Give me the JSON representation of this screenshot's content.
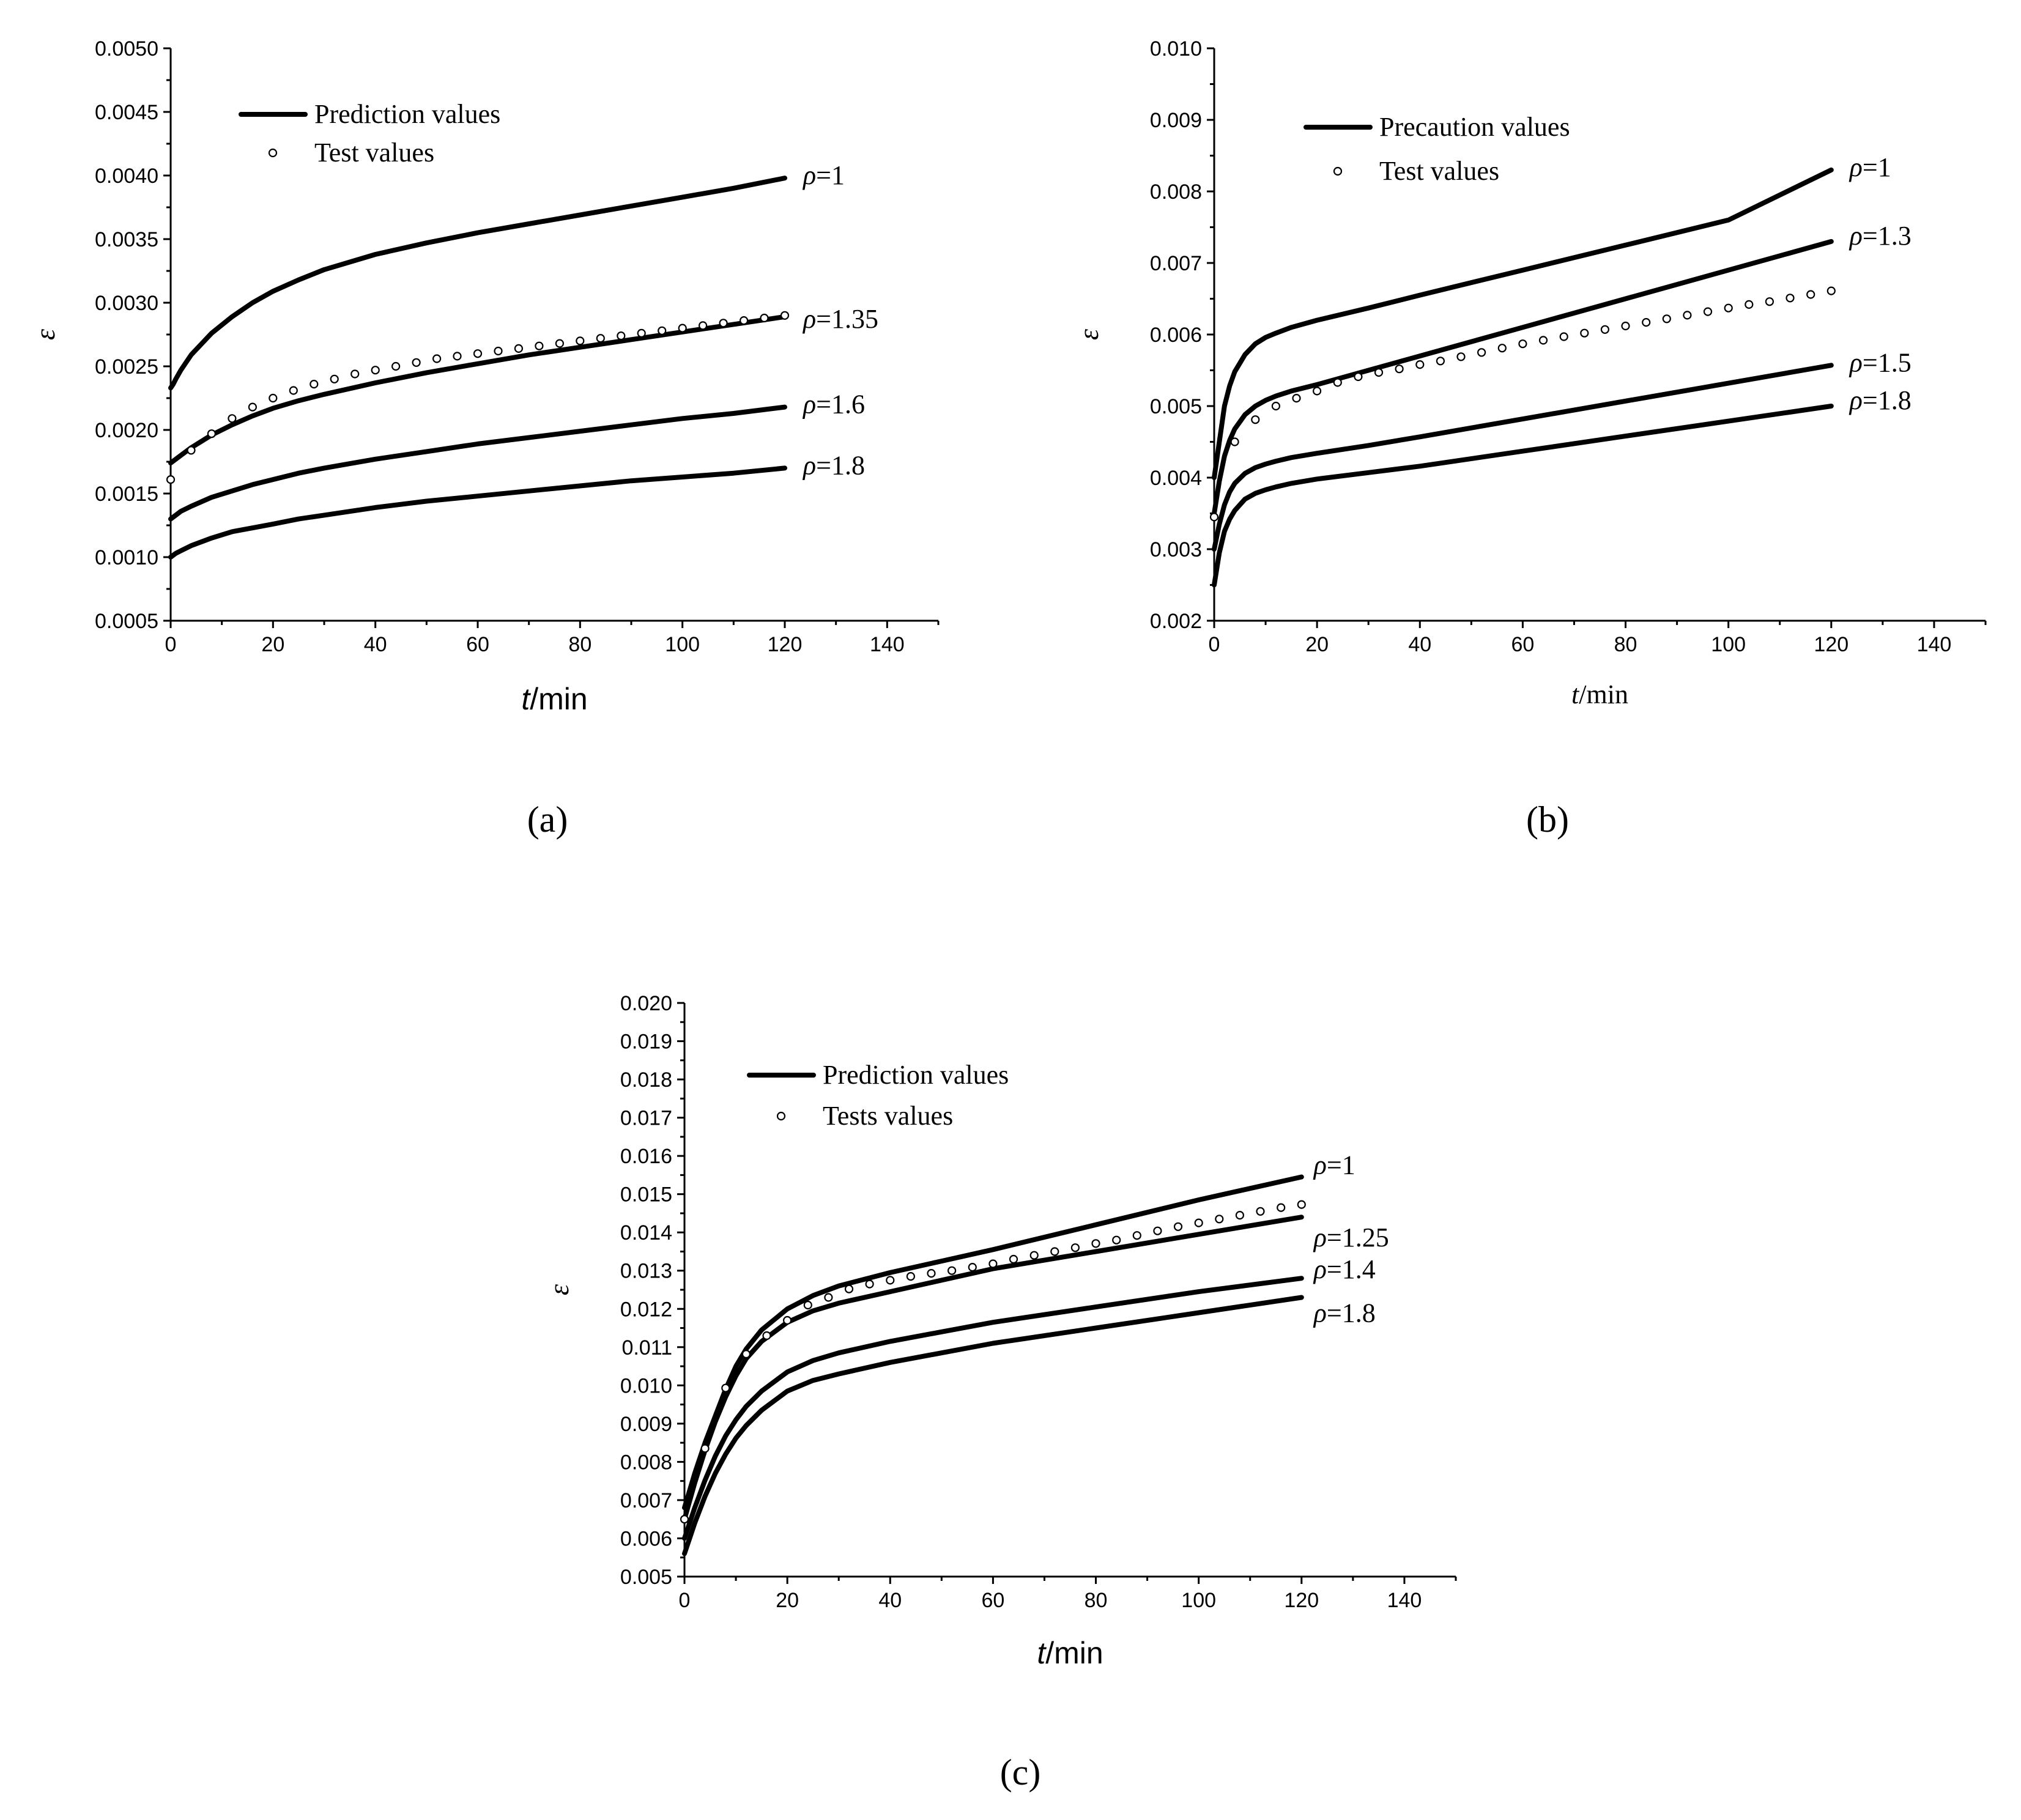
{
  "figure": {
    "panel_labels": [
      "(a)",
      "(b)",
      "(c)"
    ]
  },
  "chart_data": [
    {
      "type": "line",
      "panel": "(a)",
      "title": "",
      "xlabel_var": "t",
      "xlabel_unit": "/min",
      "ylabel": "ε",
      "xlim": [
        0,
        150
      ],
      "ylim": [
        0.0005,
        0.005
      ],
      "x_ticks": [
        0,
        20,
        40,
        60,
        80,
        100,
        120,
        140
      ],
      "y_ticks": [
        0.0005,
        0.001,
        0.0015,
        0.002,
        0.0025,
        0.003,
        0.0035,
        0.004,
        0.0045,
        0.005
      ],
      "y_decimals": 4,
      "legend": {
        "line_label": "Prediction values",
        "marker_label": "Test values",
        "position": "top-left"
      },
      "series": [
        {
          "name": "ρ=1",
          "label_rho": "ρ",
          "label_value": "=1",
          "x": [
            0,
            0.5,
            1,
            2,
            4,
            8,
            12,
            16,
            20,
            25,
            30,
            40,
            50,
            60,
            70,
            80,
            90,
            100,
            110,
            120
          ],
          "values": [
            0.00233,
            0.00236,
            0.0024,
            0.00247,
            0.00259,
            0.00276,
            0.00289,
            0.003,
            0.00309,
            0.00318,
            0.00326,
            0.00338,
            0.00347,
            0.00355,
            0.00362,
            0.00369,
            0.00376,
            0.00383,
            0.0039,
            0.00398
          ]
        },
        {
          "name": "ρ=1.35",
          "label_rho": "ρ",
          "label_value": "=1.35",
          "x": [
            0,
            1,
            2,
            4,
            8,
            12,
            16,
            20,
            25,
            30,
            40,
            50,
            60,
            70,
            80,
            90,
            100,
            110,
            120
          ],
          "values": [
            0.00174,
            0.00177,
            0.0018,
            0.00186,
            0.00196,
            0.00204,
            0.00211,
            0.00217,
            0.00223,
            0.00228,
            0.00237,
            0.00245,
            0.00252,
            0.00259,
            0.00265,
            0.00271,
            0.00277,
            0.00283,
            0.00289
          ]
        },
        {
          "name": "ρ=1.6",
          "label_rho": "ρ",
          "label_value": "=1.6",
          "x": [
            0,
            1,
            2,
            4,
            8,
            12,
            16,
            20,
            25,
            30,
            40,
            50,
            60,
            70,
            80,
            90,
            100,
            110,
            120
          ],
          "values": [
            0.0013,
            0.00133,
            0.00136,
            0.0014,
            0.00147,
            0.00152,
            0.00157,
            0.00161,
            0.00166,
            0.0017,
            0.00177,
            0.00183,
            0.00189,
            0.00194,
            0.00199,
            0.00204,
            0.00209,
            0.00213,
            0.00218
          ]
        },
        {
          "name": "ρ=1.8",
          "label_rho": "ρ",
          "label_value": "=1.8",
          "x": [
            0,
            1,
            2,
            4,
            8,
            12,
            16,
            20,
            25,
            30,
            40,
            50,
            60,
            70,
            80,
            90,
            100,
            110,
            120
          ],
          "values": [
            0.001,
            0.00103,
            0.00105,
            0.00109,
            0.00115,
            0.0012,
            0.00123,
            0.00126,
            0.0013,
            0.00133,
            0.00139,
            0.00144,
            0.00148,
            0.00152,
            0.00156,
            0.0016,
            0.00163,
            0.00166,
            0.0017
          ]
        }
      ],
      "test_points": {
        "x": [
          0,
          4,
          8,
          12,
          16,
          20,
          24,
          28,
          32,
          36,
          40,
          44,
          48,
          52,
          56,
          60,
          64,
          68,
          72,
          76,
          80,
          84,
          88,
          92,
          96,
          100,
          104,
          108,
          112,
          116,
          120
        ],
        "values": [
          0.00161,
          0.00184,
          0.00197,
          0.00209,
          0.00218,
          0.00225,
          0.00231,
          0.00236,
          0.0024,
          0.00244,
          0.00247,
          0.0025,
          0.00253,
          0.00256,
          0.00258,
          0.0026,
          0.00262,
          0.00264,
          0.00266,
          0.00268,
          0.0027,
          0.00272,
          0.00274,
          0.00276,
          0.00278,
          0.0028,
          0.00282,
          0.00284,
          0.00286,
          0.00288,
          0.0029
        ]
      }
    },
    {
      "type": "line",
      "panel": "(b)",
      "title": "",
      "xlabel_var": "t",
      "xlabel_unit": "/min",
      "ylabel": "ε",
      "xlim": [
        0,
        150
      ],
      "ylim": [
        0.002,
        0.01
      ],
      "x_ticks": [
        0,
        20,
        40,
        60,
        80,
        100,
        120,
        140
      ],
      "y_ticks": [
        0.002,
        0.003,
        0.004,
        0.005,
        0.006,
        0.007,
        0.008,
        0.009,
        0.01
      ],
      "y_decimals": 3,
      "legend": {
        "line_label": "Precaution values",
        "marker_label": "Test values",
        "position": "top-left"
      },
      "series": [
        {
          "name": "ρ=1",
          "label_rho": "ρ",
          "label_value": "=1",
          "x": [
            0,
            1,
            2,
            3,
            4,
            6,
            8,
            10,
            12,
            15,
            20,
            30,
            40,
            60,
            80,
            100,
            120
          ],
          "values": [
            0.004,
            0.0045,
            0.005,
            0.00528,
            0.00548,
            0.00572,
            0.00587,
            0.00596,
            0.00602,
            0.0061,
            0.0062,
            0.00637,
            0.00655,
            0.0069,
            0.00725,
            0.0076,
            0.0083
          ]
        },
        {
          "name": "ρ=1.3",
          "label_rho": "ρ",
          "label_value": "=1.3",
          "x": [
            0,
            1,
            2,
            3,
            4,
            6,
            8,
            10,
            12,
            15,
            20,
            30,
            40,
            60,
            80,
            100,
            120
          ],
          "values": [
            0.0035,
            0.00395,
            0.0043,
            0.00452,
            0.00468,
            0.00488,
            0.005,
            0.00508,
            0.00514,
            0.00521,
            0.0053,
            0.0055,
            0.0057,
            0.0061,
            0.0065,
            0.0069,
            0.0073
          ]
        },
        {
          "name": "ρ=1.5",
          "label_rho": "ρ",
          "label_value": "=1.5",
          "x": [
            0,
            1,
            2,
            3,
            4,
            6,
            8,
            10,
            12,
            15,
            20,
            30,
            40,
            60,
            80,
            100,
            120
          ],
          "values": [
            0.003,
            0.00335,
            0.00362,
            0.0038,
            0.00392,
            0.00406,
            0.00414,
            0.00419,
            0.00423,
            0.00428,
            0.00434,
            0.00445,
            0.00457,
            0.00482,
            0.00507,
            0.00532,
            0.00557
          ]
        },
        {
          "name": "ρ=1.8",
          "label_rho": "ρ",
          "label_value": "=1.8",
          "x": [
            0,
            1,
            2,
            3,
            4,
            6,
            8,
            10,
            12,
            15,
            20,
            30,
            40,
            60,
            80,
            100,
            120
          ],
          "values": [
            0.0025,
            0.00295,
            0.00325,
            0.00342,
            0.00354,
            0.0037,
            0.00378,
            0.00383,
            0.00387,
            0.00392,
            0.00398,
            0.00407,
            0.00416,
            0.00437,
            0.00458,
            0.00479,
            0.005
          ]
        }
      ],
      "test_points": {
        "x": [
          0,
          4,
          8,
          12,
          16,
          20,
          24,
          28,
          32,
          36,
          40,
          44,
          48,
          52,
          56,
          60,
          64,
          68,
          72,
          76,
          80,
          84,
          88,
          92,
          96,
          100,
          104,
          108,
          112,
          116,
          120
        ],
        "values": [
          0.00345,
          0.0045,
          0.00481,
          0.005,
          0.00511,
          0.00521,
          0.00533,
          0.00541,
          0.00547,
          0.00552,
          0.00558,
          0.00563,
          0.00569,
          0.00575,
          0.00581,
          0.00587,
          0.00592,
          0.00597,
          0.00602,
          0.00607,
          0.00612,
          0.00617,
          0.00622,
          0.00627,
          0.00632,
          0.00637,
          0.00642,
          0.00646,
          0.00651,
          0.00656,
          0.00661
        ]
      }
    },
    {
      "type": "line",
      "panel": "(c)",
      "title": "",
      "xlabel_var": "t",
      "xlabel_unit": "/min",
      "ylabel": "ε",
      "xlim": [
        0,
        150
      ],
      "ylim": [
        0.005,
        0.02
      ],
      "x_ticks": [
        0,
        20,
        40,
        60,
        80,
        100,
        120,
        140
      ],
      "y_ticks": [
        0.005,
        0.006,
        0.007,
        0.008,
        0.009,
        0.01,
        0.011,
        0.012,
        0.013,
        0.014,
        0.015,
        0.016,
        0.017,
        0.018,
        0.019,
        0.02
      ],
      "y_decimals": 3,
      "legend": {
        "line_label": "Prediction values",
        "marker_label": "Tests values",
        "position": "top-left"
      },
      "series": [
        {
          "name": "ρ=1",
          "label_rho": "ρ",
          "label_value": "=1",
          "x": [
            0,
            2,
            4,
            6,
            8,
            10,
            12,
            15,
            20,
            25,
            30,
            40,
            50,
            60,
            80,
            100,
            120
          ],
          "values": [
            0.0068,
            0.0077,
            0.0085,
            0.0092,
            0.0099,
            0.0105,
            0.01095,
            0.01145,
            0.012,
            0.01235,
            0.0126,
            0.01295,
            0.01325,
            0.01355,
            0.0142,
            0.01485,
            0.01545
          ]
        },
        {
          "name": "ρ=1.25",
          "label_rho": "ρ",
          "label_value": "=1.25",
          "x": [
            0,
            2,
            4,
            6,
            8,
            10,
            12,
            15,
            20,
            25,
            30,
            40,
            50,
            60,
            80,
            100,
            120
          ],
          "values": [
            0.0065,
            0.00745,
            0.0083,
            0.00905,
            0.0097,
            0.01025,
            0.0107,
            0.01115,
            0.01165,
            0.01195,
            0.01215,
            0.01245,
            0.01275,
            0.01305,
            0.0135,
            0.01395,
            0.0144
          ]
        },
        {
          "name": "ρ=1.4",
          "label_rho": "ρ",
          "label_value": "=1.4",
          "x": [
            0,
            2,
            4,
            6,
            8,
            10,
            12,
            15,
            20,
            25,
            30,
            40,
            50,
            60,
            80,
            100,
            120
          ],
          "values": [
            0.006,
            0.0068,
            0.00752,
            0.00815,
            0.00868,
            0.0091,
            0.00945,
            0.00985,
            0.01035,
            0.01065,
            0.01085,
            0.01115,
            0.0114,
            0.01165,
            0.01205,
            0.01245,
            0.0128
          ]
        },
        {
          "name": "ρ=1.8",
          "label_rho": "ρ",
          "label_value": "=1.8",
          "x": [
            0,
            2,
            4,
            6,
            8,
            10,
            12,
            15,
            20,
            25,
            30,
            40,
            50,
            60,
            80,
            100,
            120
          ],
          "values": [
            0.0056,
            0.0064,
            0.0071,
            0.0077,
            0.0082,
            0.00862,
            0.00895,
            0.00935,
            0.00985,
            0.01013,
            0.0103,
            0.0106,
            0.01085,
            0.0111,
            0.0115,
            0.0119,
            0.0123
          ]
        }
      ],
      "test_points": {
        "x": [
          0,
          4,
          8,
          12,
          16,
          20,
          24,
          28,
          32,
          36,
          40,
          44,
          48,
          52,
          56,
          60,
          64,
          68,
          72,
          76,
          80,
          84,
          88,
          92,
          96,
          100,
          104,
          108,
          112,
          116,
          120
        ],
        "values": [
          0.0065,
          0.00835,
          0.00993,
          0.01082,
          0.0113,
          0.0117,
          0.0121,
          0.0123,
          0.01252,
          0.01265,
          0.01275,
          0.01285,
          0.01293,
          0.013,
          0.01309,
          0.01318,
          0.0133,
          0.0134,
          0.0135,
          0.0136,
          0.01371,
          0.0138,
          0.01392,
          0.01404,
          0.01415,
          0.01425,
          0.01435,
          0.01445,
          0.01455,
          0.01465,
          0.01473
        ]
      }
    }
  ]
}
